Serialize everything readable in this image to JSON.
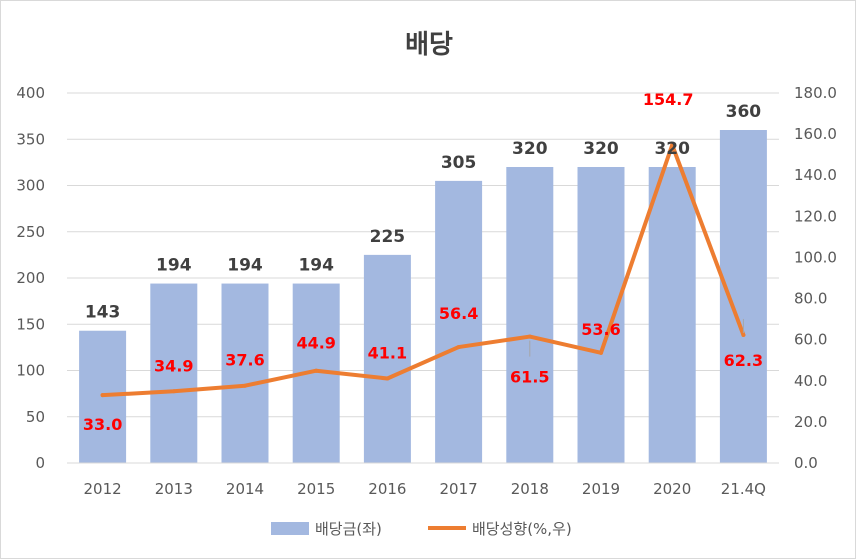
{
  "chart_data": {
    "type": "bar",
    "title": "배당",
    "categories": [
      "2012",
      "2013",
      "2014",
      "2015",
      "2016",
      "2017",
      "2018",
      "2019",
      "2020",
      "21.4Q"
    ],
    "series": [
      {
        "name": "배당금(좌)",
        "type": "bar",
        "axis": "left",
        "color": "#a3b8e0",
        "values": [
          143,
          194,
          194,
          194,
          225,
          305,
          320,
          320,
          320,
          360
        ],
        "labels": [
          "143",
          "194",
          "194",
          "194",
          "225",
          "305",
          "320",
          "320",
          "320",
          "360"
        ]
      },
      {
        "name": "배당성향(%,우)",
        "type": "line",
        "axis": "right",
        "color": "#ed7d31",
        "label_color": "#ff0000",
        "values": [
          33.0,
          34.9,
          37.6,
          44.9,
          41.1,
          56.4,
          61.5,
          53.6,
          154.7,
          62.3
        ],
        "labels": [
          "33.0",
          "34.9",
          "37.6",
          "44.9",
          "41.1",
          "56.4",
          "61.5",
          "53.6",
          "154.7",
          "62.3"
        ]
      }
    ],
    "y_left": {
      "range": [
        0,
        400
      ],
      "ticks": [
        "0",
        "50",
        "100",
        "150",
        "200",
        "250",
        "300",
        "350",
        "400"
      ]
    },
    "y_right": {
      "range": [
        0,
        180
      ],
      "ticks": [
        "0.0",
        "20.0",
        "40.0",
        "60.0",
        "80.0",
        "100.0",
        "120.0",
        "140.0",
        "160.0",
        "180.0"
      ]
    },
    "grid": true,
    "legend_position": "bottom"
  }
}
